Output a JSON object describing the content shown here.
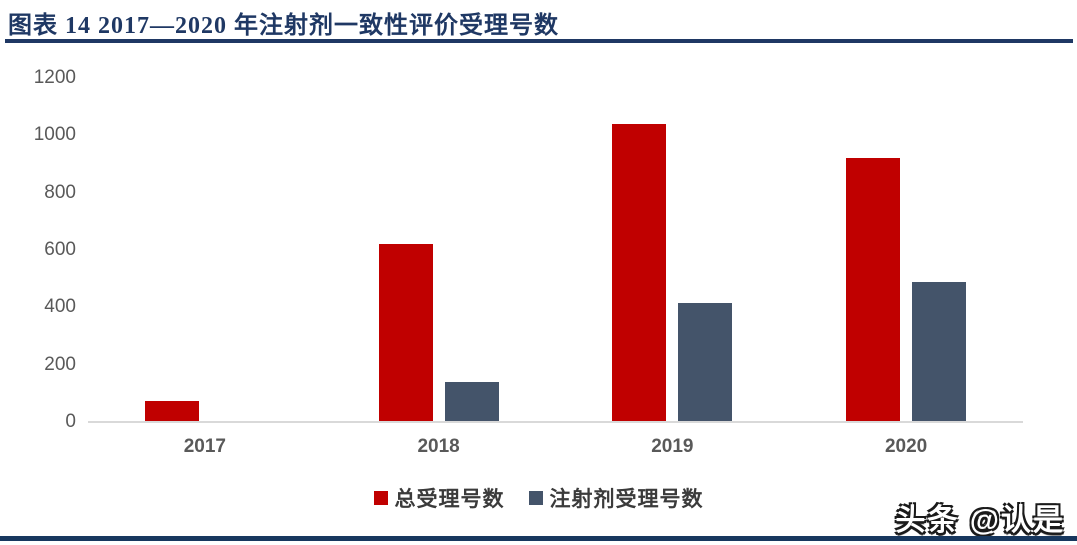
{
  "header": {
    "title": "图表 14  2017—2020 年注射剂一致性评价受理号数"
  },
  "chart_data": {
    "type": "bar",
    "title": "2017—2020 年注射剂一致性评价受理号数",
    "categories": [
      "2017",
      "2018",
      "2019",
      "2020"
    ],
    "series": [
      {
        "name": "总受理号数",
        "color": "#C00000",
        "values": [
          75,
          620,
          1040,
          920
        ]
      },
      {
        "name": "注射剂受理号数",
        "color": "#44546A",
        "values": [
          0,
          140,
          415,
          490
        ]
      }
    ],
    "xlabel": "",
    "ylabel": "",
    "ylim": [
      0,
      1200
    ],
    "yticks": [
      0,
      200,
      400,
      600,
      800,
      1000,
      1200
    ],
    "grid": false,
    "legend_position": "bottom"
  },
  "watermark": {
    "text": "头条 @认是"
  },
  "colors": {
    "title_navy": "#1F3864",
    "bottom_rule_navy": "#17375E",
    "bar_red": "#C00000",
    "bar_slate": "#44546A",
    "axis_text": "#595959",
    "axis_line": "#D9D9D9"
  }
}
